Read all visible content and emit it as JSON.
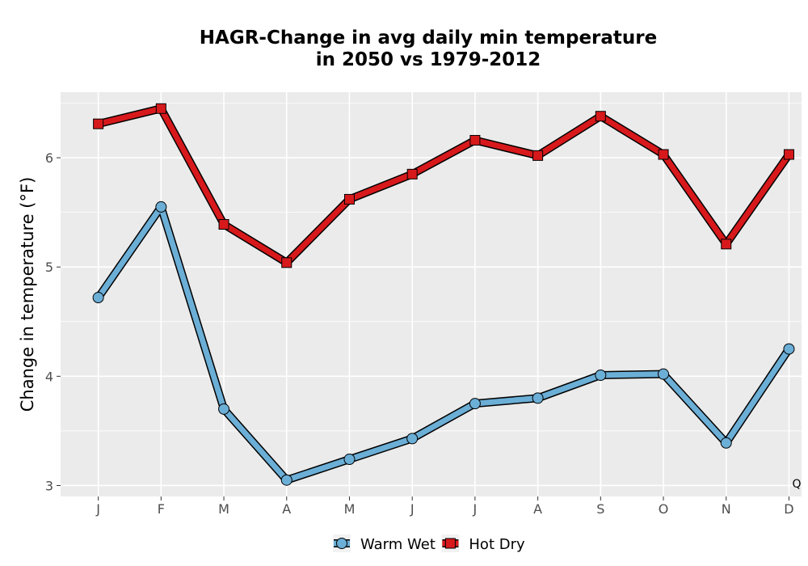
{
  "chart_data": {
    "type": "line",
    "title_line1": "HAGR-Change in avg daily min temperature",
    "title_line2": "in 2050 vs 1979-2012",
    "xlabel": "",
    "ylabel": "Change in temperature (°F)",
    "categories": [
      "J",
      "F",
      "M",
      "A",
      "M",
      "J",
      "J",
      "A",
      "S",
      "O",
      "N",
      "D"
    ],
    "ylim": [
      2.9,
      6.6
    ],
    "yticks": [
      3,
      4,
      5,
      6
    ],
    "grid": true,
    "legend_position": "bottom",
    "corner_label": "Q",
    "series": [
      {
        "name": "Warm Wet",
        "marker": "circle",
        "color": "#6baed6",
        "values": [
          4.72,
          5.55,
          3.7,
          3.05,
          3.24,
          3.43,
          3.75,
          3.8,
          4.01,
          4.02,
          3.39,
          4.25
        ]
      },
      {
        "name": "Hot Dry",
        "marker": "square",
        "color": "#d7191c",
        "values": [
          6.31,
          6.45,
          5.39,
          5.04,
          5.62,
          5.85,
          6.16,
          6.02,
          6.38,
          6.03,
          5.21,
          6.03
        ]
      }
    ]
  }
}
